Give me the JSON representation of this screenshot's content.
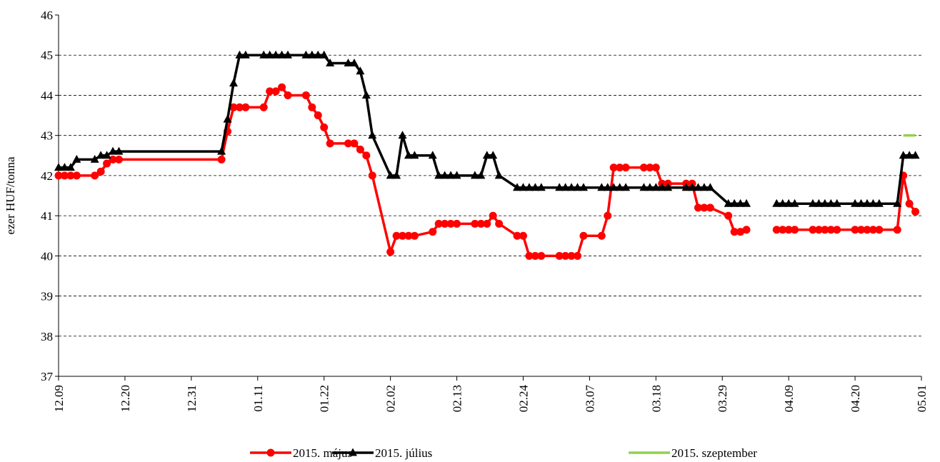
{
  "chart_data": {
    "type": "line",
    "y_label": "ezer HUF/tonna",
    "x": [
      "12.09",
      "12.10",
      "12.11",
      "12.12",
      "12.15",
      "12.16",
      "12.17",
      "12.18",
      "12.19",
      "01.05",
      "01.06",
      "01.07",
      "01.08",
      "01.09",
      "01.12",
      "01.13",
      "01.14",
      "01.15",
      "01.16",
      "01.19",
      "01.20",
      "01.21",
      "01.22",
      "01.23",
      "01.26",
      "01.27",
      "01.28",
      "01.29",
      "01.30",
      "02.02",
      "02.03",
      "02.04",
      "02.05",
      "02.06",
      "02.09",
      "02.10",
      "02.11",
      "02.12",
      "02.13",
      "02.16",
      "02.17",
      "02.18",
      "02.19",
      "02.20",
      "02.23",
      "02.24",
      "02.25",
      "02.26",
      "02.27",
      "03.02",
      "03.03",
      "03.04",
      "03.05",
      "03.06",
      "03.09",
      "03.10",
      "03.11",
      "03.12",
      "03.13",
      "03.16",
      "03.17",
      "03.18",
      "03.19",
      "03.20",
      "03.23",
      "03.24",
      "03.25",
      "03.26",
      "03.27",
      "03.30",
      "03.31",
      "04.01",
      "04.02",
      "04.06",
      "04.07",
      "04.08",
      "04.09",
      "04.10",
      "04.13",
      "04.14",
      "04.15",
      "04.16",
      "04.17",
      "04.20",
      "04.21",
      "04.22",
      "04.23",
      "04.24",
      "04.27",
      "04.28",
      "04.29",
      "04.30"
    ],
    "series": [
      {
        "name": "2015. május",
        "color": "#ff0000",
        "marker": "circle",
        "values": [
          42.0,
          42.0,
          42.0,
          42.0,
          42.0,
          42.1,
          42.3,
          42.4,
          42.4,
          42.4,
          43.1,
          43.7,
          43.7,
          43.7,
          43.7,
          44.1,
          44.1,
          44.2,
          44.0,
          44.0,
          43.7,
          43.5,
          43.2,
          42.8,
          42.8,
          42.8,
          42.65,
          42.5,
          42.0,
          40.1,
          40.5,
          40.5,
          40.5,
          40.5,
          40.6,
          40.8,
          40.8,
          40.8,
          40.8,
          40.8,
          40.8,
          40.8,
          41.0,
          40.8,
          40.5,
          40.5,
          40.0,
          40.0,
          40.0,
          40.0,
          40.0,
          40.0,
          40.0,
          40.5,
          40.5,
          41.0,
          42.2,
          42.2,
          42.2,
          42.2,
          42.2,
          42.2,
          41.8,
          41.8,
          41.8,
          41.8,
          41.2,
          41.2,
          41.2,
          41.0,
          40.6,
          40.6,
          40.65,
          null,
          40.65,
          40.65,
          40.65,
          40.65,
          40.65,
          40.65,
          40.65,
          40.65,
          40.65,
          40.65,
          40.65,
          40.65,
          40.65,
          40.65,
          40.65,
          42.0,
          41.3,
          41.1
        ]
      },
      {
        "name": "2015. július",
        "color": "#000000",
        "marker": "triangle",
        "values": [
          42.2,
          42.2,
          42.2,
          42.4,
          42.4,
          42.5,
          42.5,
          42.6,
          42.6,
          42.6,
          43.4,
          44.3,
          45.0,
          45.0,
          45.0,
          45.0,
          45.0,
          45.0,
          45.0,
          45.0,
          45.0,
          45.0,
          45.0,
          44.8,
          44.8,
          44.8,
          44.6,
          44.0,
          43.0,
          42.0,
          42.0,
          43.0,
          42.5,
          42.5,
          42.5,
          42.0,
          42.0,
          42.0,
          42.0,
          42.0,
          42.0,
          42.5,
          42.5,
          42.0,
          41.7,
          41.7,
          41.7,
          41.7,
          41.7,
          41.7,
          41.7,
          41.7,
          41.7,
          41.7,
          41.7,
          41.7,
          41.7,
          41.7,
          41.7,
          41.7,
          41.7,
          41.7,
          41.7,
          41.7,
          41.7,
          41.7,
          41.7,
          41.7,
          41.7,
          41.3,
          41.3,
          41.3,
          41.3,
          null,
          41.3,
          41.3,
          41.3,
          41.3,
          41.3,
          41.3,
          41.3,
          41.3,
          41.3,
          41.3,
          41.3,
          41.3,
          41.3,
          41.3,
          41.3,
          42.5,
          42.5,
          42.5
        ]
      },
      {
        "name": "2015. szeptember",
        "color": "#92d050",
        "marker": "none",
        "values": [
          null,
          null,
          null,
          null,
          null,
          null,
          null,
          null,
          null,
          null,
          null,
          null,
          null,
          null,
          null,
          null,
          null,
          null,
          null,
          null,
          null,
          null,
          null,
          null,
          null,
          null,
          null,
          null,
          null,
          null,
          null,
          null,
          null,
          null,
          null,
          null,
          null,
          null,
          null,
          null,
          null,
          null,
          null,
          null,
          null,
          null,
          null,
          null,
          null,
          null,
          null,
          null,
          null,
          null,
          null,
          null,
          null,
          null,
          null,
          null,
          null,
          null,
          null,
          null,
          null,
          null,
          null,
          null,
          null,
          null,
          null,
          null,
          null,
          null,
          null,
          null,
          null,
          null,
          null,
          null,
          null,
          null,
          null,
          null,
          null,
          null,
          null,
          null,
          null,
          43.0,
          43.0,
          43.0
        ]
      }
    ],
    "xlim": [
      "12.09",
      "05.01"
    ],
    "xticks": [
      "12.09",
      "12.20",
      "12.31",
      "01.11",
      "01.22",
      "02.02",
      "02.13",
      "02.24",
      "03.07",
      "03.18",
      "03.29",
      "04.09",
      "04.20",
      "05.01"
    ],
    "ylim": [
      37,
      46
    ],
    "yticks": [
      37,
      38,
      39,
      40,
      41,
      42,
      43,
      44,
      45,
      46
    ],
    "grid": true,
    "legend": "bottom"
  }
}
